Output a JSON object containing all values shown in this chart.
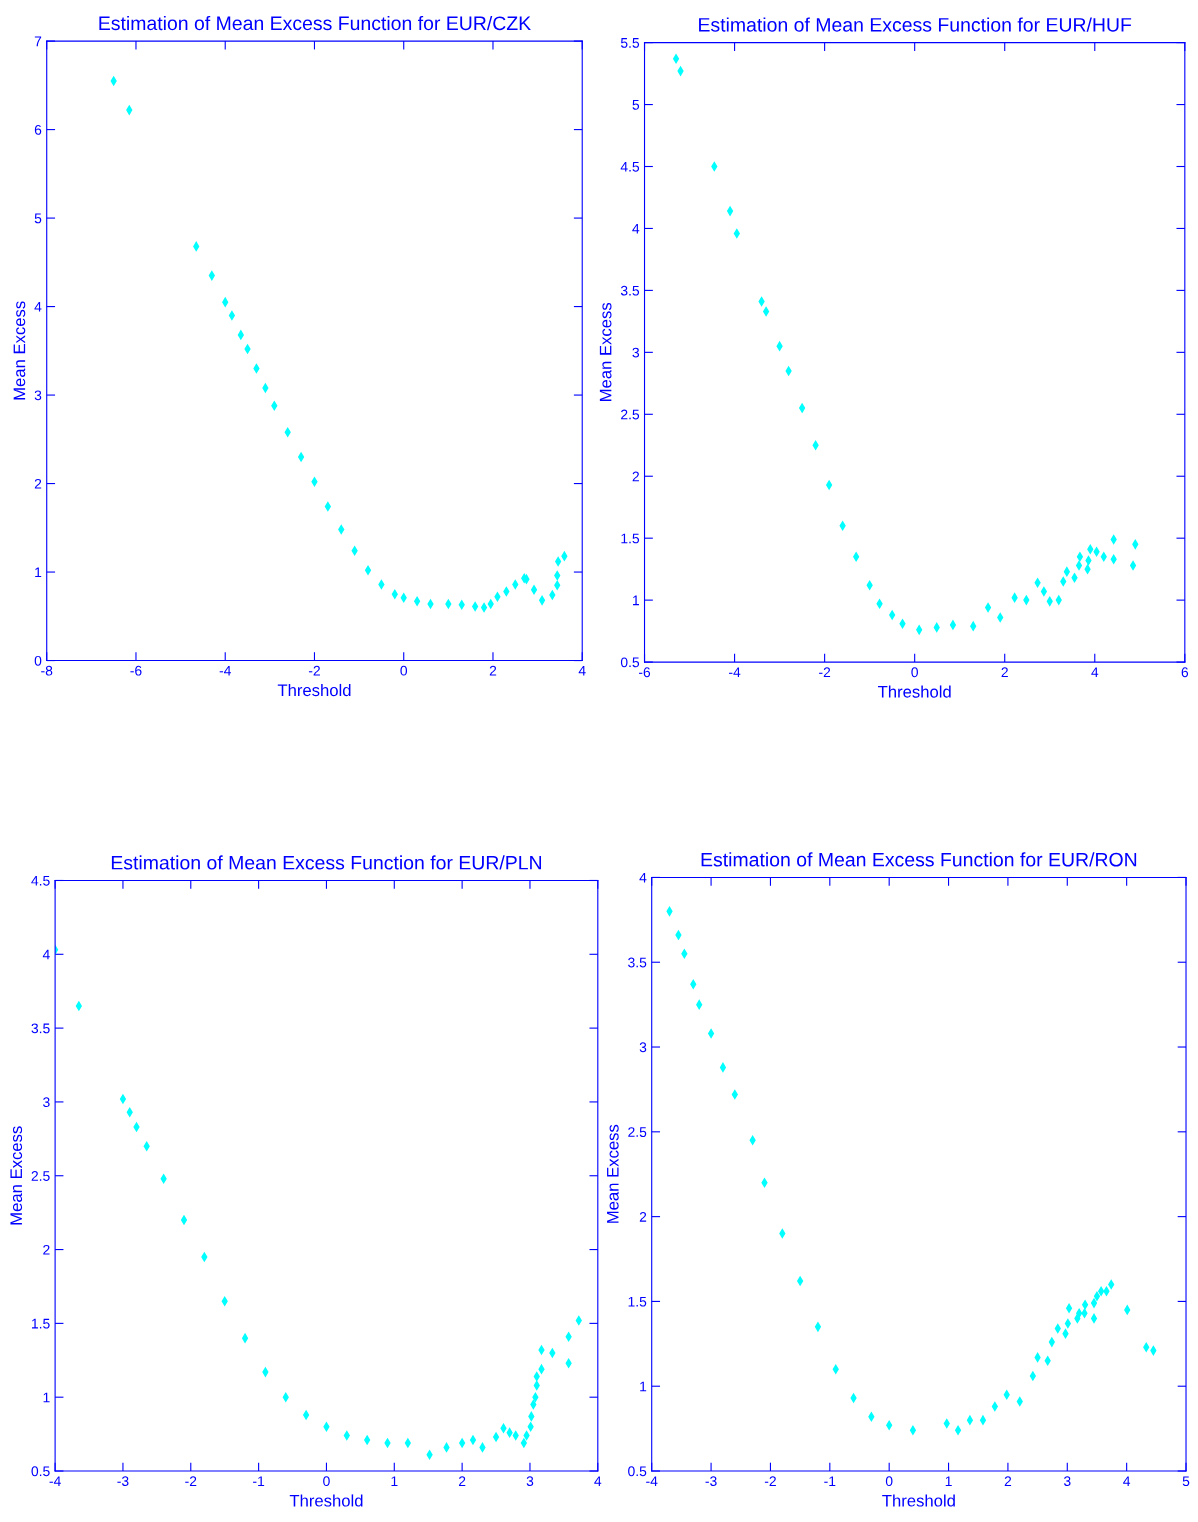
{
  "chart_data": [
    {
      "type": "scatter",
      "title": "Estimation of Mean Excess Function for EUR/CZK",
      "xlabel": "Threshold",
      "ylabel": "Mean Excess",
      "xlim": [
        -8,
        4
      ],
      "xticks": [
        -8,
        -6,
        -4,
        -2,
        0,
        2,
        4
      ],
      "ylim": [
        0,
        7
      ],
      "yticks": [
        0,
        1,
        2,
        3,
        4,
        5,
        6,
        7
      ],
      "marker": "diamond",
      "grid": false,
      "series": [
        {
          "color": "#00ffff",
          "x": [
            -6.5,
            -6.15,
            -4.65,
            -4.3,
            -4.0,
            -3.85,
            -3.65,
            -3.5,
            -3.3,
            -3.1,
            -2.9,
            -2.6,
            -2.3,
            -2.0,
            -1.7,
            -1.4,
            -1.1,
            -0.8,
            -0.5,
            -0.2,
            0,
            0.3,
            0.6,
            1.0,
            1.3,
            1.6,
            1.8,
            1.95,
            2.1,
            2.3,
            2.5,
            2.7,
            2.75,
            2.92,
            3.1,
            3.33,
            3.44,
            3.44,
            3.46,
            3.6
          ],
          "values": [
            6.55,
            6.22,
            4.68,
            4.35,
            4.05,
            3.9,
            3.68,
            3.52,
            3.3,
            3.08,
            2.88,
            2.58,
            2.3,
            2.02,
            1.74,
            1.48,
            1.24,
            1.02,
            0.86,
            0.75,
            0.71,
            0.67,
            0.64,
            0.64,
            0.63,
            0.61,
            0.6,
            0.64,
            0.72,
            0.78,
            0.86,
            0.93,
            0.92,
            0.8,
            0.68,
            0.74,
            0.85,
            0.96,
            1.12,
            1.18
          ]
        }
      ]
    },
    {
      "type": "scatter",
      "title": "Estimation of Mean Excess Function for EUR/HUF",
      "xlabel": "Threshold",
      "ylabel": "Mean Excess",
      "xlim": [
        -6,
        6
      ],
      "xticks": [
        -6,
        -4,
        -2,
        0,
        2,
        4,
        6
      ],
      "ylim": [
        0.5,
        5.5
      ],
      "yticks": [
        0.5,
        1,
        1.5,
        2,
        2.5,
        3,
        3.5,
        4,
        4.5,
        5,
        5.5
      ],
      "marker": "diamond",
      "grid": false,
      "series": [
        {
          "color": "#00ffff",
          "x": [
            -5.3,
            -5.2,
            -4.45,
            -4.1,
            -3.95,
            -3.4,
            -3.3,
            -3.0,
            -2.8,
            -2.5,
            -2.2,
            -1.9,
            -1.6,
            -1.3,
            -1.0,
            -0.78,
            -0.5,
            -0.27,
            0.1,
            0.49,
            0.85,
            1.3,
            1.63,
            1.9,
            2.22,
            2.48,
            2.73,
            2.87,
            3.0,
            3.2,
            3.3,
            3.38,
            3.55,
            3.65,
            3.67,
            3.84,
            3.86,
            3.9,
            4.04,
            4.2,
            4.42,
            4.42,
            4.85,
            4.9
          ],
          "values": [
            5.37,
            5.27,
            4.5,
            4.14,
            3.96,
            3.41,
            3.33,
            3.05,
            2.85,
            2.55,
            2.25,
            1.93,
            1.6,
            1.35,
            1.12,
            0.97,
            0.88,
            0.81,
            0.76,
            0.78,
            0.8,
            0.79,
            0.94,
            0.86,
            1.02,
            1.0,
            1.14,
            1.07,
            0.99,
            1.0,
            1.15,
            1.23,
            1.18,
            1.28,
            1.35,
            1.25,
            1.32,
            1.41,
            1.39,
            1.35,
            1.33,
            1.49,
            1.28,
            1.45
          ]
        }
      ]
    },
    {
      "type": "scatter",
      "title": "Estimation of Mean Excess Function for EUR/PLN",
      "xlabel": "Threshold",
      "ylabel": "Mean Excess",
      "xlim": [
        -4,
        4
      ],
      "xticks": [
        -4,
        -3,
        -2,
        -1,
        0,
        1,
        2,
        3,
        4
      ],
      "ylim": [
        0.5,
        4.5
      ],
      "yticks": [
        0.5,
        1,
        1.5,
        2,
        2.5,
        3,
        3.5,
        4,
        4.5
      ],
      "marker": "diamond",
      "grid": false,
      "series": [
        {
          "color": "#00ffff",
          "x": [
            -4.0,
            -3.65,
            -3.0,
            -2.9,
            -2.8,
            -2.65,
            -2.4,
            -2.1,
            -1.8,
            -1.5,
            -1.2,
            -0.9,
            -0.6,
            -0.3,
            0,
            0.3,
            0.6,
            0.9,
            1.2,
            1.52,
            1.77,
            2.0,
            2.16,
            2.3,
            2.5,
            2.61,
            2.7,
            2.79,
            2.91,
            2.95,
            3.01,
            3.02,
            3.05,
            3.08,
            3.1,
            3.1,
            3.17,
            3.17,
            3.33,
            3.57,
            3.57,
            3.72
          ],
          "values": [
            4.03,
            3.65,
            3.02,
            2.93,
            2.83,
            2.7,
            2.48,
            2.2,
            1.95,
            1.65,
            1.4,
            1.17,
            1.0,
            0.88,
            0.8,
            0.74,
            0.71,
            0.69,
            0.69,
            0.61,
            0.66,
            0.69,
            0.71,
            0.66,
            0.73,
            0.79,
            0.76,
            0.74,
            0.69,
            0.74,
            0.8,
            0.87,
            0.95,
            1.0,
            1.08,
            1.14,
            1.19,
            1.32,
            1.3,
            1.23,
            1.41,
            1.52
          ]
        }
      ]
    },
    {
      "type": "scatter",
      "title": "Estimation of Mean Excess Function for EUR/RON",
      "xlabel": "Threshold",
      "ylabel": "Mean Excess",
      "xlim": [
        -4,
        5
      ],
      "xticks": [
        -4,
        -3,
        -2,
        -1,
        0,
        1,
        2,
        3,
        4,
        5
      ],
      "ylim": [
        0.5,
        4
      ],
      "yticks": [
        0.5,
        1,
        1.5,
        2,
        2.5,
        3,
        3.5,
        4
      ],
      "marker": "diamond",
      "grid": false,
      "series": [
        {
          "color": "#00ffff",
          "x": [
            -3.7,
            -3.55,
            -3.45,
            -3.3,
            -3.2,
            -3.0,
            -2.8,
            -2.6,
            -2.3,
            -2.1,
            -1.8,
            -1.5,
            -1.2,
            -0.9,
            -0.6,
            -0.3,
            0,
            0.4,
            0.97,
            1.16,
            1.36,
            1.58,
            1.78,
            1.98,
            2.2,
            2.42,
            2.5,
            2.67,
            2.74,
            2.84,
            2.97,
            3.01,
            3.03,
            3.17,
            3.2,
            3.29,
            3.3,
            3.45,
            3.45,
            3.5,
            3.57,
            3.66,
            3.74,
            4.01,
            4.33,
            4.45
          ],
          "values": [
            3.8,
            3.66,
            3.55,
            3.37,
            3.25,
            3.08,
            2.88,
            2.72,
            2.45,
            2.2,
            1.9,
            1.62,
            1.35,
            1.1,
            0.93,
            0.82,
            0.77,
            0.74,
            0.78,
            0.74,
            0.8,
            0.8,
            0.88,
            0.95,
            0.91,
            1.06,
            1.17,
            1.15,
            1.26,
            1.34,
            1.31,
            1.37,
            1.46,
            1.4,
            1.43,
            1.43,
            1.48,
            1.4,
            1.49,
            1.53,
            1.56,
            1.56,
            1.6,
            1.45,
            1.23,
            1.21
          ]
        }
      ]
    }
  ]
}
